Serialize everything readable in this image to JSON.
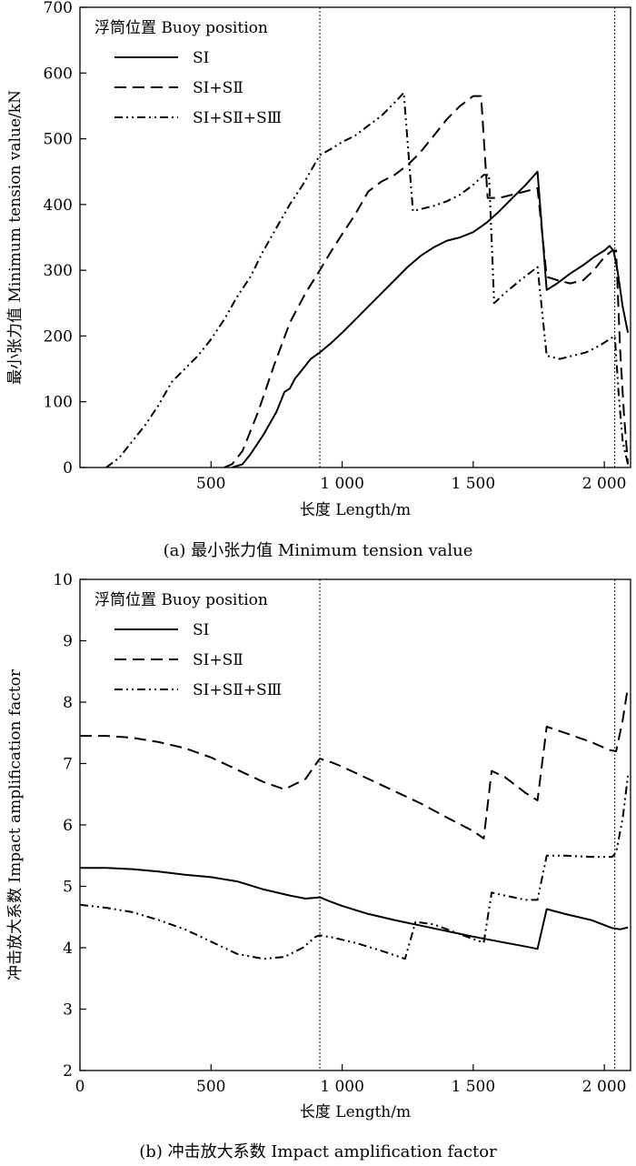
{
  "chart_data": [
    {
      "type": "line",
      "caption": "(a) 最小张力值 Minimum tension value",
      "xlabel": "长度 Length/m",
      "ylabel": "最小张力值 Minimum tension value/kN",
      "xlim": [
        0,
        2100
      ],
      "ylim": [
        0,
        700
      ],
      "xticks": [
        500,
        1000,
        1500,
        2000
      ],
      "xtick_labels": [
        "500",
        "1 000",
        "1 500",
        "2 000"
      ],
      "yticks": [
        0,
        100,
        200,
        300,
        400,
        500,
        600,
        700
      ],
      "ytick_labels": [
        "0",
        "100",
        "200",
        "300",
        "400",
        "500",
        "600",
        "700"
      ],
      "vlines": [
        915,
        2040
      ],
      "legend_title": "浮筒位置 Buoy position",
      "legend_position": "top-left",
      "grid": false,
      "series": [
        {
          "name": "SⅠ",
          "style": "solid",
          "x": [
            580,
            620,
            650,
            700,
            750,
            780,
            800,
            820,
            850,
            880,
            915,
            960,
            1000,
            1050,
            1100,
            1150,
            1200,
            1250,
            1300,
            1350,
            1400,
            1450,
            1500,
            1550,
            1600,
            1650,
            1700,
            1745,
            1780,
            1820,
            1870,
            1920,
            1960,
            2000,
            2020,
            2035,
            2050,
            2070,
            2090
          ],
          "y": [
            0,
            5,
            20,
            50,
            85,
            115,
            120,
            135,
            150,
            165,
            175,
            190,
            205,
            225,
            245,
            265,
            285,
            305,
            322,
            335,
            345,
            350,
            358,
            372,
            390,
            410,
            430,
            450,
            270,
            280,
            295,
            308,
            320,
            330,
            337,
            330,
            300,
            245,
            205
          ]
        },
        {
          "name": "SⅠ+SⅡ",
          "style": "dashed",
          "x": [
            550,
            580,
            620,
            680,
            740,
            800,
            860,
            915,
            960,
            1000,
            1050,
            1100,
            1150,
            1200,
            1250,
            1300,
            1350,
            1400,
            1450,
            1500,
            1530,
            1555,
            1600,
            1650,
            1700,
            1745,
            1780,
            1820,
            1870,
            1920,
            1960,
            2000,
            2030,
            2045,
            2060,
            2075,
            2090
          ],
          "y": [
            0,
            5,
            25,
            85,
            155,
            220,
            265,
            300,
            330,
            355,
            385,
            420,
            435,
            445,
            460,
            480,
            505,
            530,
            550,
            565,
            565,
            410,
            410,
            415,
            420,
            425,
            290,
            285,
            280,
            285,
            300,
            320,
            330,
            330,
            180,
            80,
            5
          ]
        },
        {
          "name": "SⅠ+SⅡ+SⅢ",
          "style": "dash-dot-dot",
          "x": [
            100,
            150,
            200,
            250,
            300,
            350,
            400,
            450,
            500,
            550,
            600,
            650,
            700,
            750,
            800,
            850,
            915,
            960,
            1000,
            1050,
            1100,
            1150,
            1200,
            1235,
            1270,
            1300,
            1350,
            1400,
            1450,
            1500,
            1540,
            1560,
            1580,
            1620,
            1680,
            1745,
            1780,
            1830,
            1880,
            1930,
            1980,
            2020,
            2040,
            2055,
            2070,
            2090
          ],
          "y": [
            0,
            15,
            40,
            65,
            95,
            130,
            150,
            170,
            195,
            225,
            260,
            290,
            330,
            365,
            400,
            430,
            475,
            485,
            495,
            505,
            520,
            535,
            555,
            570,
            390,
            393,
            398,
            405,
            415,
            430,
            445,
            445,
            250,
            265,
            285,
            305,
            170,
            165,
            170,
            175,
            185,
            195,
            200,
            110,
            40,
            5
          ]
        }
      ]
    },
    {
      "type": "line",
      "caption": "(b) 冲击放大系数 Impact amplification factor",
      "xlabel": "长度 Length/m",
      "ylabel": "冲击放大系数 Impact amplification factor",
      "xlim": [
        0,
        2100
      ],
      "ylim": [
        2,
        10
      ],
      "xticks": [
        0,
        500,
        1000,
        1500,
        2000
      ],
      "xtick_labels": [
        "0",
        "500",
        "1 000",
        "1 500",
        "2 000"
      ],
      "yticks": [
        2,
        3,
        4,
        5,
        6,
        7,
        8,
        9,
        10
      ],
      "ytick_labels": [
        "2",
        "3",
        "4",
        "5",
        "6",
        "7",
        "8",
        "9",
        "10"
      ],
      "vlines": [
        915,
        2040
      ],
      "legend_title": "浮筒位置 Buoy position",
      "legend_position": "top-left",
      "grid": false,
      "series": [
        {
          "name": "SⅠ",
          "style": "solid",
          "x": [
            0,
            100,
            200,
            300,
            400,
            500,
            600,
            700,
            800,
            860,
            915,
            950,
            1000,
            1100,
            1200,
            1300,
            1400,
            1500,
            1600,
            1700,
            1745,
            1780,
            1850,
            1950,
            2030,
            2060,
            2090
          ],
          "y": [
            5.3,
            5.3,
            5.28,
            5.24,
            5.19,
            5.15,
            5.08,
            4.95,
            4.85,
            4.8,
            4.82,
            4.76,
            4.68,
            4.55,
            4.45,
            4.36,
            4.27,
            4.18,
            4.1,
            4.02,
            3.98,
            4.63,
            4.55,
            4.45,
            4.32,
            4.3,
            4.33
          ]
        },
        {
          "name": "SⅠ+SⅡ",
          "style": "dashed",
          "x": [
            0,
            100,
            200,
            300,
            400,
            500,
            600,
            700,
            780,
            860,
            915,
            960,
            1000,
            1100,
            1200,
            1300,
            1400,
            1500,
            1540,
            1570,
            1620,
            1700,
            1745,
            1780,
            1850,
            1950,
            2020,
            2045,
            2070,
            2090
          ],
          "y": [
            7.45,
            7.45,
            7.42,
            7.35,
            7.25,
            7.1,
            6.9,
            6.7,
            6.58,
            6.75,
            7.08,
            7.02,
            6.95,
            6.75,
            6.55,
            6.35,
            6.12,
            5.9,
            5.78,
            6.88,
            6.78,
            6.52,
            6.4,
            7.6,
            7.5,
            7.35,
            7.22,
            7.2,
            7.7,
            8.25
          ]
        },
        {
          "name": "SⅠ+SⅡ+SⅢ",
          "style": "dash-dot-dot",
          "x": [
            0,
            100,
            200,
            300,
            400,
            500,
            600,
            700,
            780,
            850,
            900,
            915,
            960,
            1050,
            1150,
            1240,
            1280,
            1350,
            1450,
            1540,
            1570,
            1620,
            1700,
            1745,
            1780,
            1850,
            1950,
            2030,
            2045,
            2070,
            2090
          ],
          "y": [
            4.7,
            4.65,
            4.58,
            4.45,
            4.3,
            4.1,
            3.9,
            3.82,
            3.85,
            4.0,
            4.18,
            4.2,
            4.17,
            4.08,
            3.95,
            3.82,
            4.42,
            4.38,
            4.22,
            4.08,
            4.9,
            4.85,
            4.78,
            4.78,
            5.5,
            5.5,
            5.48,
            5.48,
            5.55,
            6.1,
            6.8
          ]
        }
      ]
    }
  ]
}
